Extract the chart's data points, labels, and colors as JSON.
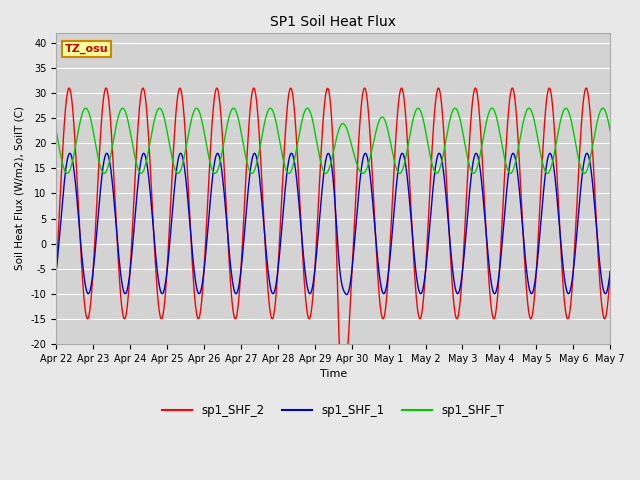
{
  "title": "SP1 Soil Heat Flux",
  "xlabel": "Time",
  "ylabel": "Soil Heat Flux (W/m2), SoilT (C)",
  "ylim": [
    -20,
    42
  ],
  "yticks": [
    -20,
    -15,
    -10,
    -5,
    0,
    5,
    10,
    15,
    20,
    25,
    30,
    35,
    40
  ],
  "background_color": "#e8e8e8",
  "plot_bg_color": "#d3d3d3",
  "line_colors": {
    "sp1_SHF_2": "#ff0000",
    "sp1_SHF_1": "#0000cc",
    "sp1_SHF_T": "#00cc00"
  },
  "line_width": 1.0,
  "tz_label": "TZ_osu",
  "tz_box_color": "#ffff99",
  "tz_border_color": "#cc8800",
  "tz_text_color": "#cc0000",
  "date_labels": [
    "Apr 22",
    "Apr 23",
    "Apr 24",
    "Apr 25",
    "Apr 26",
    "Apr 27",
    "Apr 28",
    "Apr 29",
    "Apr 30",
    "May 1",
    "May 2",
    "May 3",
    "May 4",
    "May 5",
    "May 6",
    "May 7"
  ]
}
